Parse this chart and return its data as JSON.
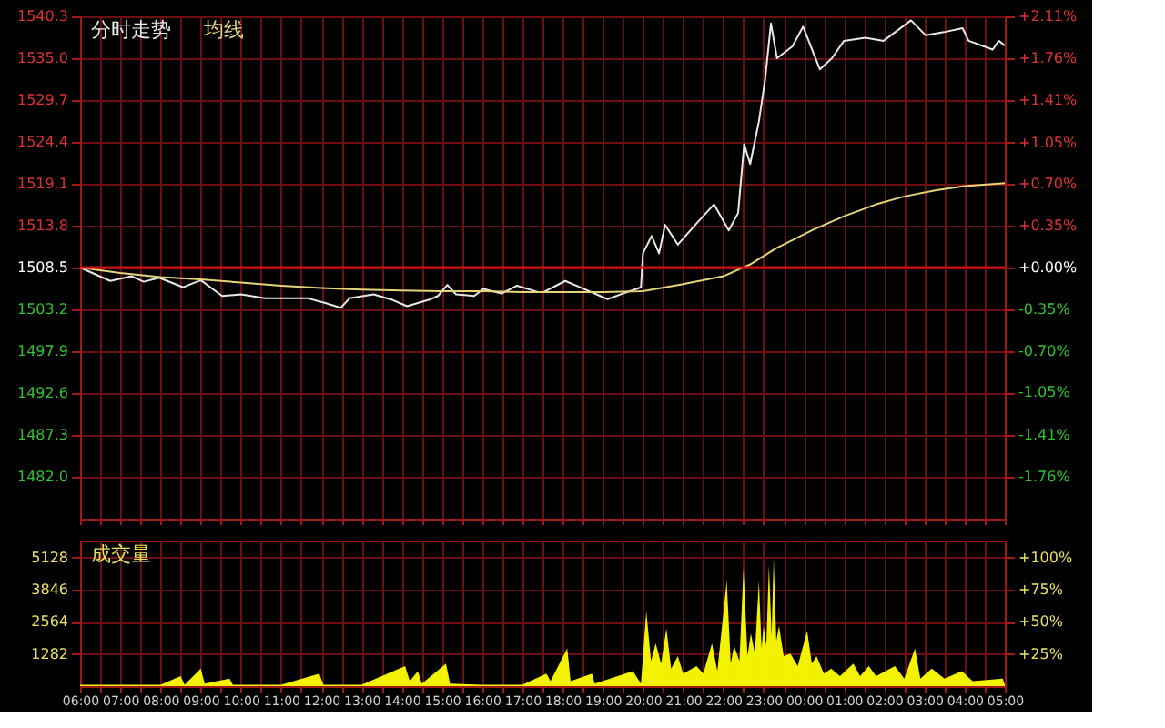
{
  "chart_data": [
    {
      "type": "line",
      "legend": "top left",
      "grid": true,
      "tick_labels": "y",
      "xlim": [
        "2000-01-01T06:00",
        "2000-01-02T05:00"
      ],
      "xticks": [
        {
          "value": "2000-01-01T06:00",
          "label": null
        },
        {
          "value": "2000-01-01T06:30",
          "label": null
        },
        {
          "value": "2000-01-01T07:00",
          "label": null
        },
        {
          "value": "2000-01-01T07:30",
          "label": null
        },
        {
          "value": "2000-01-01T08:00",
          "label": null
        },
        {
          "value": "2000-01-01T08:30",
          "label": null
        },
        {
          "value": "2000-01-01T09:00",
          "label": null
        },
        {
          "value": "2000-01-01T09:30",
          "label": null
        },
        {
          "value": "2000-01-01T10:00",
          "label": null
        },
        {
          "value": "2000-01-01T10:30",
          "label": null
        },
        {
          "value": "2000-01-01T11:00",
          "label": null
        },
        {
          "value": "2000-01-01T11:30",
          "label": null
        },
        {
          "value": "2000-01-01T12:00",
          "label": null
        },
        {
          "value": "2000-01-01T12:30",
          "label": null
        },
        {
          "value": "2000-01-01T13:00",
          "label": null
        },
        {
          "value": "2000-01-01T13:30",
          "label": null
        },
        {
          "value": "2000-01-01T14:00",
          "label": null
        },
        {
          "value": "2000-01-01T14:30",
          "label": null
        },
        {
          "value": "2000-01-01T15:00",
          "label": null
        },
        {
          "value": "2000-01-01T15:30",
          "label": null
        },
        {
          "value": "2000-01-01T16:00",
          "label": null
        },
        {
          "value": "2000-01-01T16:30",
          "label": null
        },
        {
          "value": "2000-01-01T17:00",
          "label": null
        },
        {
          "value": "2000-01-01T17:30",
          "label": null
        },
        {
          "value": "2000-01-01T18:00",
          "label": null
        },
        {
          "value": "2000-01-01T18:30",
          "label": null
        },
        {
          "value": "2000-01-01T19:00",
          "label": null
        },
        {
          "value": "2000-01-01T19:30",
          "label": null
        },
        {
          "value": "2000-01-01T20:00",
          "label": null
        },
        {
          "value": "2000-01-01T20:30",
          "label": null
        },
        {
          "value": "2000-01-01T21:00",
          "label": null
        },
        {
          "value": "2000-01-01T21:30",
          "label": null
        },
        {
          "value": "2000-01-01T22:00",
          "label": null
        },
        {
          "value": "2000-01-01T22:30",
          "label": null
        },
        {
          "value": "2000-01-01T23:00",
          "label": null
        },
        {
          "value": "2000-01-01T23:30",
          "label": null
        },
        {
          "value": "2000-01-02T00:00",
          "label": null
        },
        {
          "value": "2000-01-02T00:30",
          "label": null
        },
        {
          "value": "2000-01-02T01:00",
          "label": null
        },
        {
          "value": "2000-01-02T01:30",
          "label": null
        },
        {
          "value": "2000-01-02T02:00",
          "label": null
        },
        {
          "value": "2000-01-02T02:30",
          "label": null
        },
        {
          "value": "2000-01-02T03:00",
          "label": null
        },
        {
          "value": "2000-01-02T03:30",
          "label": null
        },
        {
          "value": "2000-01-02T04:00",
          "label": null
        },
        {
          "value": "2000-01-02T04:30",
          "label": null
        },
        {
          "value": "2000-01-02T05:00",
          "label": null
        }
      ],
      "ylim": [
        1476.7,
        1540.3
      ],
      "yticks": [
        1540.3,
        {
          "value": 1535,
          "label": "1535.0"
        },
        1529.7,
        1524.4,
        1519.1,
        1513.8,
        1508.5,
        1503.2,
        1497.9,
        1492.6,
        1487.3,
        {
          "value": 1482,
          "label": "1482.0"
        }
      ],
      "y2lim": [
        -2.11,
        2.11
      ],
      "y2ticks": [
        {
          "value": 2.11,
          "label": "+2.11%"
        },
        {
          "value": 1.76,
          "label": "+1.76%"
        },
        {
          "value": 1.41,
          "label": "+1.41%"
        },
        {
          "value": 1.05,
          "label": "+1.05%"
        },
        {
          "value": 0.7,
          "label": "+0.70%"
        },
        {
          "value": 0.35,
          "label": "+0.35%"
        },
        {
          "value": 0,
          "label": "+0.00%"
        },
        {
          "value": -0.35,
          "label": "-0.35%"
        },
        {
          "value": -0.7,
          "label": "-0.70%"
        },
        {
          "value": -1.05,
          "label": "-1.05%"
        },
        {
          "value": -1.41,
          "label": "-1.41%"
        },
        {
          "value": -1.76,
          "label": "-1.76%"
        }
      ],
      "ref_lines": [
        {
          "axis": "y",
          "value": 1508.5,
          "color": "#d01010"
        }
      ],
      "series": [
        {
          "name": "分时走势",
          "color": "#e8e8e8",
          "x": [
            "2000-01-01T06:00",
            "2000-01-01T06:45",
            "2000-01-01T07:17",
            "2000-01-01T07:35",
            "2000-01-01T07:58",
            "2000-01-01T08:34",
            "2000-01-01T09:00",
            "2000-01-01T09:32",
            "2000-01-01T10:00",
            "2000-01-01T10:36",
            "2000-01-01T11:40",
            "2000-01-01T12:06",
            "2000-01-01T12:29",
            "2000-01-01T12:42",
            "2000-01-01T13:18",
            "2000-01-01T13:46",
            "2000-01-01T14:08",
            "2000-01-01T14:40",
            "2000-01-01T14:54",
            "2000-01-01T15:08",
            "2000-01-01T15:21",
            "2000-01-01T15:48",
            "2000-01-01T16:02",
            "2000-01-01T16:29",
            "2000-01-01T16:52",
            "2000-01-01T17:23",
            "2000-01-01T17:32",
            "2000-01-01T18:04",
            "2000-01-01T18:26",
            "2000-01-01T19:07",
            "2000-01-01T19:30",
            "2000-01-01T19:57",
            "2000-01-01T20:00",
            "2000-01-01T20:13",
            "2000-01-01T20:24",
            "2000-01-01T20:33",
            "2000-01-01T20:52",
            "2000-01-01T21:18",
            "2000-01-01T21:46",
            "2000-01-01T22:08",
            "2000-01-01T22:22",
            "2000-01-01T22:31",
            "2000-01-01T22:40",
            "2000-01-01T22:53",
            "2000-01-01T23:02",
            "2000-01-01T23:11",
            "2000-01-01T23:20",
            "2000-01-01T23:43",
            "2000-01-01T23:59",
            "2000-01-02T00:24",
            "2000-01-02T00:42",
            "2000-01-02T01:00",
            "2000-01-02T01:32",
            "2000-01-02T01:59",
            "2000-01-02T02:40",
            "2000-01-02T03:02",
            "2000-01-02T03:29",
            "2000-01-02T03:57",
            "2000-01-02T04:06",
            "2000-01-02T04:42",
            "2000-01-02T04:51",
            "2000-01-02T05:00"
          ],
          "values": [
            1508.5,
            1506.8,
            1507.4,
            1506.7,
            1507.2,
            1506.0,
            1506.9,
            1504.9,
            1505.1,
            1504.6,
            1504.6,
            1504.0,
            1503.4,
            1504.6,
            1505.1,
            1504.4,
            1503.6,
            1504.4,
            1504.9,
            1506.3,
            1505.1,
            1504.9,
            1505.8,
            1505.2,
            1506.2,
            1505.4,
            1505.4,
            1506.8,
            1506.0,
            1504.5,
            1505.2,
            1506.0,
            1510.3,
            1512.5,
            1510.3,
            1513.9,
            1511.4,
            1513.9,
            1516.5,
            1513.2,
            1515.4,
            1524.1,
            1521.6,
            1527.0,
            1532.1,
            1539.4,
            1535.0,
            1536.5,
            1539.0,
            1533.6,
            1535.0,
            1537.2,
            1537.6,
            1537.2,
            1539.8,
            1537.9,
            1538.3,
            1538.8,
            1537.2,
            1536.1,
            1537.2,
            1536.6
          ]
        },
        {
          "name": "均线",
          "color": "#e6d47a",
          "x": [
            "2000-01-01T06:00",
            "2000-01-01T07:00",
            "2000-01-01T08:00",
            "2000-01-01T09:00",
            "2000-01-01T10:00",
            "2000-01-01T11:00",
            "2000-01-01T12:00",
            "2000-01-01T13:00",
            "2000-01-01T14:00",
            "2000-01-01T15:00",
            "2000-01-01T16:00",
            "2000-01-01T17:00",
            "2000-01-01T18:00",
            "2000-01-01T19:00",
            "2000-01-01T20:00",
            "2000-01-01T21:00",
            "2000-01-01T22:00",
            "2000-01-01T22:40",
            "2000-01-01T23:18",
            "2000-01-02T00:12",
            "2000-01-02T01:00",
            "2000-01-02T01:48",
            "2000-01-02T02:30",
            "2000-01-02T03:18",
            "2000-01-02T04:00",
            "2000-01-02T05:00"
          ],
          "values": [
            1508.5,
            1507.8,
            1507.3,
            1507.0,
            1506.6,
            1506.2,
            1505.9,
            1505.7,
            1505.6,
            1505.5,
            1505.5,
            1505.4,
            1505.4,
            1505.4,
            1505.5,
            1506.4,
            1507.4,
            1508.9,
            1510.9,
            1513.2,
            1515.0,
            1516.5,
            1517.5,
            1518.3,
            1518.8,
            1519.2
          ]
        }
      ]
    },
    {
      "type": "area",
      "title": "成交量",
      "grid": true,
      "xlim": [
        "2000-01-01T06:00",
        "2000-01-02T05:00"
      ],
      "xticks": [
        {
          "value": "2000-01-01T06:00",
          "label": "06:00"
        },
        {
          "value": "2000-01-01T06:30",
          "label": null
        },
        {
          "value": "2000-01-01T07:00",
          "label": "07:00"
        },
        {
          "value": "2000-01-01T07:30",
          "label": null
        },
        {
          "value": "2000-01-01T08:00",
          "label": "08:00"
        },
        {
          "value": "2000-01-01T08:30",
          "label": null
        },
        {
          "value": "2000-01-01T09:00",
          "label": "09:00"
        },
        {
          "value": "2000-01-01T09:30",
          "label": null
        },
        {
          "value": "2000-01-01T10:00",
          "label": "10:00"
        },
        {
          "value": "2000-01-01T10:30",
          "label": null
        },
        {
          "value": "2000-01-01T11:00",
          "label": "11:00"
        },
        {
          "value": "2000-01-01T11:30",
          "label": null
        },
        {
          "value": "2000-01-01T12:00",
          "label": "12:00"
        },
        {
          "value": "2000-01-01T12:30",
          "label": null
        },
        {
          "value": "2000-01-01T13:00",
          "label": "13:00"
        },
        {
          "value": "2000-01-01T13:30",
          "label": null
        },
        {
          "value": "2000-01-01T14:00",
          "label": "14:00"
        },
        {
          "value": "2000-01-01T14:30",
          "label": null
        },
        {
          "value": "2000-01-01T15:00",
          "label": "15:00"
        },
        {
          "value": "2000-01-01T15:30",
          "label": null
        },
        {
          "value": "2000-01-01T16:00",
          "label": "16:00"
        },
        {
          "value": "2000-01-01T16:30",
          "label": null
        },
        {
          "value": "2000-01-01T17:00",
          "label": "17:00"
        },
        {
          "value": "2000-01-01T17:30",
          "label": null
        },
        {
          "value": "2000-01-01T18:00",
          "label": "18:00"
        },
        {
          "value": "2000-01-01T18:30",
          "label": null
        },
        {
          "value": "2000-01-01T19:00",
          "label": "19:00"
        },
        {
          "value": "2000-01-01T19:30",
          "label": null
        },
        {
          "value": "2000-01-01T20:00",
          "label": "20:00"
        },
        {
          "value": "2000-01-01T20:30",
          "label": null
        },
        {
          "value": "2000-01-01T21:00",
          "label": "21:00"
        },
        {
          "value": "2000-01-01T21:30",
          "label": null
        },
        {
          "value": "2000-01-01T22:00",
          "label": "22:00"
        },
        {
          "value": "2000-01-01T22:30",
          "label": null
        },
        {
          "value": "2000-01-01T23:00",
          "label": "23:00"
        },
        {
          "value": "2000-01-01T23:30",
          "label": null
        },
        {
          "value": "2000-01-02T00:00",
          "label": "00:00"
        },
        {
          "value": "2000-01-02T00:30",
          "label": null
        },
        {
          "value": "2000-01-02T01:00",
          "label": "01:00"
        },
        {
          "value": "2000-01-02T01:30",
          "label": null
        },
        {
          "value": "2000-01-02T02:00",
          "label": "02:00"
        },
        {
          "value": "2000-01-02T02:30",
          "label": null
        },
        {
          "value": "2000-01-02T03:00",
          "label": "03:00"
        },
        {
          "value": "2000-01-02T03:30",
          "label": null
        },
        {
          "value": "2000-01-02T04:00",
          "label": "04:00"
        },
        {
          "value": "2000-01-02T04:30",
          "label": null
        },
        {
          "value": "2000-01-02T05:00",
          "label": "05:00"
        }
      ],
      "ylim": [
        0,
        5800
      ],
      "yticks": [
        1282,
        2564,
        3846,
        5128
      ],
      "y2lim": [
        0,
        113.1
      ],
      "y2ticks": [
        {
          "value": 25,
          "label": "+25%"
        },
        {
          "value": 50,
          "label": "+50%"
        },
        {
          "value": 75,
          "label": "+75%"
        },
        {
          "value": 100,
          "label": "+100%"
        }
      ],
      "series": [
        {
          "color": "#ffff00",
          "x": [
            "2000-01-01T06:00",
            "2000-01-01T07:00",
            "2000-01-01T08:00",
            "2000-01-01T08:30",
            "2000-01-01T08:36",
            "2000-01-01T09:00",
            "2000-01-01T09:06",
            "2000-01-01T09:43",
            "2000-01-01T09:48",
            "2000-01-01T11:00",
            "2000-01-01T11:57",
            "2000-01-01T12:03",
            "2000-01-01T13:00",
            "2000-01-01T14:05",
            "2000-01-01T14:12",
            "2000-01-01T14:24",
            "2000-01-01T14:30",
            "2000-01-01T15:06",
            "2000-01-01T15:12",
            "2000-01-01T16:00",
            "2000-01-01T17:00",
            "2000-01-01T17:36",
            "2000-01-01T17:42",
            "2000-01-01T18:07",
            "2000-01-01T18:12",
            "2000-01-01T18:44",
            "2000-01-01T18:48",
            "2000-01-01T19:45",
            "2000-01-01T19:57",
            "2000-01-01T20:05",
            "2000-01-01T20:12",
            "2000-01-01T20:19",
            "2000-01-01T20:27",
            "2000-01-01T20:35",
            "2000-01-01T20:42",
            "2000-01-01T20:52",
            "2000-01-01T21:00",
            "2000-01-01T21:20",
            "2000-01-01T21:30",
            "2000-01-01T21:43",
            "2000-01-01T21:51",
            "2000-01-01T22:05",
            "2000-01-01T22:11",
            "2000-01-01T22:16",
            "2000-01-01T22:24",
            "2000-01-01T22:30",
            "2000-01-01T22:36",
            "2000-01-01T22:41",
            "2000-01-01T22:47",
            "2000-01-01T22:53",
            "2000-01-01T22:57",
            "2000-01-01T23:00",
            "2000-01-01T23:04",
            "2000-01-01T23:08",
            "2000-01-01T23:12",
            "2000-01-01T23:15",
            "2000-01-01T23:19",
            "2000-01-01T23:23",
            "2000-01-01T23:30",
            "2000-01-01T23:40",
            "2000-01-01T23:51",
            "2000-01-02T00:05",
            "2000-01-02T00:12",
            "2000-01-02T00:19",
            "2000-01-02T00:30",
            "2000-01-02T00:41",
            "2000-01-02T00:54",
            "2000-01-02T01:14",
            "2000-01-02T01:24",
            "2000-01-02T01:37",
            "2000-01-02T01:48",
            "2000-01-02T02:16",
            "2000-01-02T02:30",
            "2000-01-02T02:46",
            "2000-01-02T02:54",
            "2000-01-02T03:11",
            "2000-01-02T03:30",
            "2000-01-02T03:56",
            "2000-01-02T04:12",
            "2000-01-02T04:57",
            "2000-01-02T05:00"
          ],
          "values": [
            50,
            50,
            50,
            400,
            50,
            700,
            100,
            300,
            50,
            50,
            500,
            50,
            50,
            800,
            200,
            600,
            100,
            900,
            100,
            50,
            50,
            500,
            200,
            1500,
            200,
            500,
            100,
            600,
            100,
            3000,
            1000,
            1700,
            900,
            2300,
            700,
            1200,
            500,
            800,
            500,
            1700,
            600,
            4200,
            900,
            1600,
            1000,
            4700,
            1200,
            2100,
            1300,
            4200,
            1500,
            2400,
            1600,
            4800,
            2000,
            5100,
            1800,
            2400,
            1200,
            1300,
            800,
            2200,
            900,
            1200,
            500,
            700,
            400,
            900,
            400,
            800,
            400,
            800,
            300,
            1500,
            300,
            700,
            300,
            600,
            200,
            300,
            50
          ]
        }
      ]
    }
  ]
}
